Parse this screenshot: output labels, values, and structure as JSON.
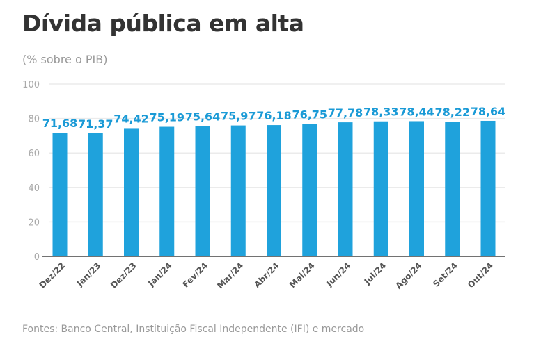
{
  "chart_data": {
    "type": "bar",
    "title": "Dívida pública em alta",
    "subtitle": "(% sobre o PIB)",
    "categories": [
      "Dez/22",
      "Jan/23",
      "Dez/23",
      "Jan/24",
      "Fev/24",
      "Mar/24",
      "Abr/24",
      "Mai/24",
      "Jun/24",
      "Jul/24",
      "Ago/24",
      "Set/24",
      "Out/24"
    ],
    "values": [
      71.68,
      71.37,
      74.42,
      75.19,
      75.64,
      75.97,
      76.18,
      76.75,
      77.78,
      78.33,
      78.44,
      78.22,
      78.64
    ],
    "data_labels": [
      "71,68",
      "71,37",
      "74,42",
      "75,19",
      "75,64",
      "75,97",
      "76,18",
      "76,75",
      "77,78",
      "78,33",
      "78,44",
      "78,22",
      "78,64"
    ],
    "ylim": [
      0,
      100
    ],
    "yticks": [
      0,
      20,
      40,
      60,
      80,
      100
    ],
    "grid": true,
    "xlabel": "",
    "ylabel": "",
    "colors": {
      "bar": "#1fa2dc",
      "label": "#1a9ad6"
    },
    "source": "Fontes: Banco Central, Instituição Fiscal Independente (IFI) e mercado"
  }
}
